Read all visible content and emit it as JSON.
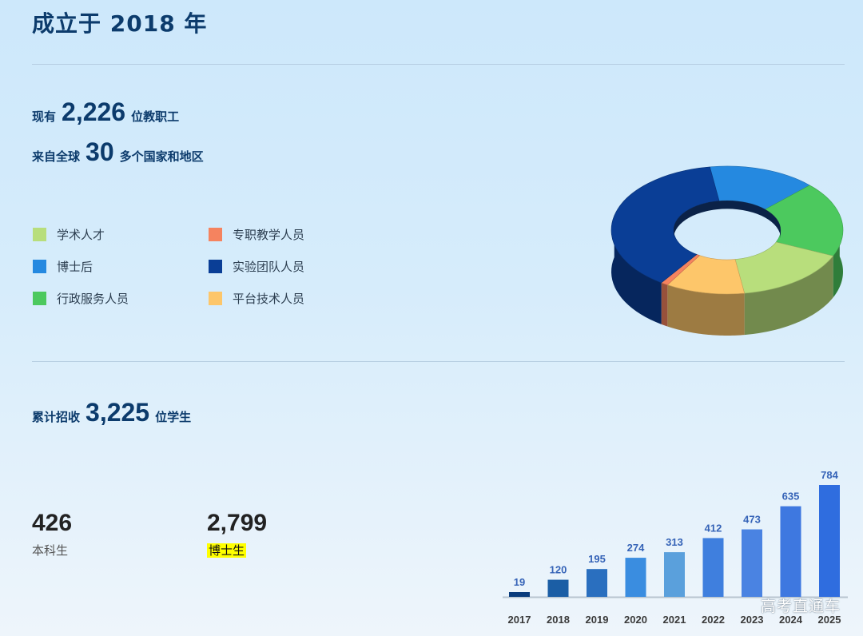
{
  "header": {
    "title": "成立于 2018 年"
  },
  "staff": {
    "prefix": "现有",
    "number": "2,226",
    "suffix": "位教职工",
    "origin_prefix": "来自全球",
    "origin_number": "30",
    "origin_suffix": "多个国家和地区"
  },
  "students": {
    "prefix": "累计招收",
    "number": "3,225",
    "suffix": "位学生"
  },
  "counts": [
    {
      "value": "426",
      "label": "本科生"
    },
    {
      "value": "2,799",
      "label": "博士生"
    }
  ],
  "watermark": "高考直通车",
  "chart_data": [
    {
      "type": "pie",
      "variant": "3d-donut",
      "legend": [
        {
          "label": "学术人才",
          "color": "#b8de7c"
        },
        {
          "label": "专职教学人员",
          "color": "#f5835f"
        },
        {
          "label": "博士后",
          "color": "#2589e0"
        },
        {
          "label": "实验团队人员",
          "color": "#0a3e96"
        },
        {
          "label": "行政服务人员",
          "color": "#4cc95e"
        },
        {
          "label": "平台技术人员",
          "color": "#fdc66a"
        }
      ],
      "slices": [
        {
          "label": "博士后",
          "share": 0.15,
          "color": "#2589e0"
        },
        {
          "label": "行政服务人员",
          "share": 0.19,
          "color": "#4cc95e"
        },
        {
          "label": "学术人才",
          "share": 0.16,
          "color": "#b8de7c"
        },
        {
          "label": "平台技术人员",
          "share": 0.11,
          "color": "#fdc66a"
        },
        {
          "label": "专职教学人员",
          "share": 0.01,
          "color": "#f5835f"
        },
        {
          "label": "实验团队人员",
          "share": 0.38,
          "color": "#0a3e96"
        }
      ]
    },
    {
      "type": "bar",
      "categories": [
        "2017",
        "2018",
        "2019",
        "2020",
        "2021",
        "2022",
        "2023",
        "2024",
        "2025"
      ],
      "values": [
        19,
        120,
        195,
        274,
        313,
        412,
        473,
        635,
        784
      ],
      "colors": [
        "#0a3c7c",
        "#1b5ea5",
        "#2a6fbf",
        "#3a8de0",
        "#5aa0dc",
        "#3f7fde",
        "#4a83e2",
        "#3e78e0",
        "#2f6ddf"
      ],
      "ylim": [
        0,
        784
      ]
    }
  ]
}
